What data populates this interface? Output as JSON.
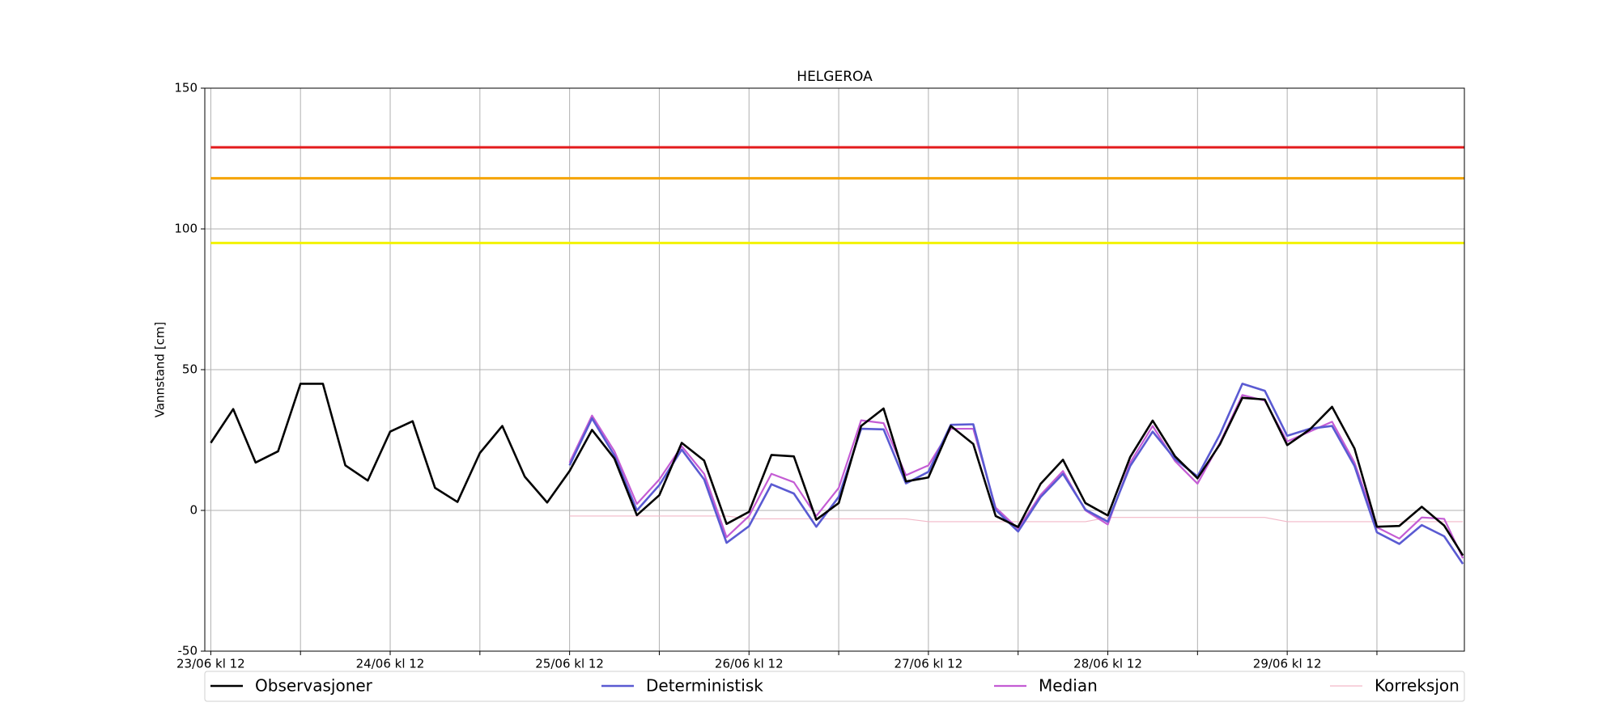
{
  "chart_data": {
    "type": "line",
    "title": "HELGEROA",
    "y_label": "Vannstand [cm]",
    "x": [
      0,
      3,
      6,
      9,
      12,
      15,
      18,
      21,
      24,
      27,
      30,
      33,
      36,
      39,
      42,
      45,
      48,
      51,
      54,
      57,
      60,
      63,
      66,
      69,
      72,
      75,
      78,
      81,
      84,
      87,
      90,
      93,
      96,
      99,
      102,
      105,
      108,
      111,
      114,
      117,
      120,
      123,
      126,
      129,
      132,
      135,
      138,
      141,
      144,
      147,
      150,
      153,
      156,
      159,
      162,
      165,
      167.5
    ],
    "xlim": [
      -0.8,
      167.7
    ],
    "xticks": [
      {
        "value": 0,
        "label": "23/06 kl 12"
      },
      {
        "value": 24,
        "label": "24/06 kl 12"
      },
      {
        "value": 48,
        "label": "25/06 kl 12"
      },
      {
        "value": 72,
        "label": "26/06 kl 12"
      },
      {
        "value": 96,
        "label": "27/06 kl 12"
      },
      {
        "value": 120,
        "label": "28/06 kl 12"
      },
      {
        "value": 144,
        "label": "29/06 kl 12"
      }
    ],
    "xminor": [
      12,
      36,
      60,
      84,
      108,
      132,
      156
    ],
    "ylim": [
      -50,
      150
    ],
    "yticks": [
      -50,
      0,
      50,
      100,
      150
    ],
    "grid": true,
    "legend": "bottom",
    "thresholds": [
      {
        "value": 129,
        "color": "#e31a1c"
      },
      {
        "value": 118,
        "color": "#f5a300"
      },
      {
        "value": 95,
        "color": "#f2f200"
      }
    ],
    "series": [
      {
        "name": "Observasjoner",
        "color": "#000000",
        "values": [
          24,
          36,
          17,
          21,
          45,
          45,
          16,
          10.6,
          28,
          31.7,
          8,
          3,
          20.4,
          30,
          12,
          2.8,
          14,
          28.6,
          18.4,
          -1.7,
          5.4,
          24,
          17.7,
          -4.8,
          -0.5,
          19.7,
          19.2,
          -3.3,
          2.6,
          30,
          36.2,
          10.3,
          11.7,
          30,
          23.6,
          -2,
          -5.9,
          9.4,
          18,
          2.6,
          -1.8,
          19,
          31.9,
          19.2,
          11.4,
          23.5,
          40,
          39.4,
          23.2,
          28.7,
          36.8,
          22,
          -5.8,
          -5.5,
          1.3,
          -5.4,
          -16
        ]
      },
      {
        "name": "Deterministisk",
        "color": "#5a5ad2",
        "values": [
          null,
          null,
          null,
          null,
          null,
          null,
          null,
          null,
          null,
          null,
          null,
          null,
          null,
          null,
          null,
          null,
          16,
          32.7,
          19.5,
          0,
          9,
          21.6,
          11,
          -11.5,
          -5.6,
          9.3,
          6,
          -5.8,
          4.8,
          29,
          28.8,
          9.6,
          13.7,
          30.4,
          30.6,
          0.2,
          -7.5,
          4.7,
          13,
          0.3,
          -4,
          15.8,
          28,
          18.2,
          12.1,
          27,
          45,
          42.5,
          26.5,
          29,
          30,
          15.8,
          -7.8,
          -11.9,
          -5.2,
          -9.2,
          -19
        ]
      },
      {
        "name": "Median",
        "color": "#c45cd4",
        "values": [
          null,
          null,
          null,
          null,
          null,
          null,
          null,
          null,
          null,
          null,
          null,
          null,
          null,
          null,
          null,
          null,
          17,
          33.7,
          21,
          2.3,
          11,
          22.8,
          13,
          -9.5,
          -2,
          13,
          10,
          -2,
          8,
          32,
          31,
          12.5,
          16,
          29,
          29,
          1,
          -6.5,
          5.5,
          14,
          0,
          -5,
          17,
          30,
          17.5,
          9.5,
          24,
          41,
          39,
          24.5,
          28,
          31.5,
          17,
          -6,
          -10,
          -2.5,
          -3,
          -17
        ]
      },
      {
        "name": "Korreksjon",
        "color": "#f2b8c8",
        "values": [
          null,
          null,
          null,
          null,
          null,
          null,
          null,
          null,
          null,
          null,
          null,
          null,
          null,
          null,
          null,
          null,
          -2,
          -2,
          -2,
          -2,
          -2,
          -2,
          -2,
          -2,
          -3,
          -3,
          -3,
          -3,
          -3,
          -3,
          -3,
          -3,
          -4,
          -4,
          -4,
          -4,
          -4,
          -4,
          -4,
          -4,
          -2.5,
          -2.5,
          -2.5,
          -2.5,
          -2.5,
          -2.5,
          -2.5,
          -2.5,
          -4,
          -4,
          -4,
          -4,
          -4,
          -4,
          -4,
          -4,
          -4
        ]
      }
    ]
  }
}
